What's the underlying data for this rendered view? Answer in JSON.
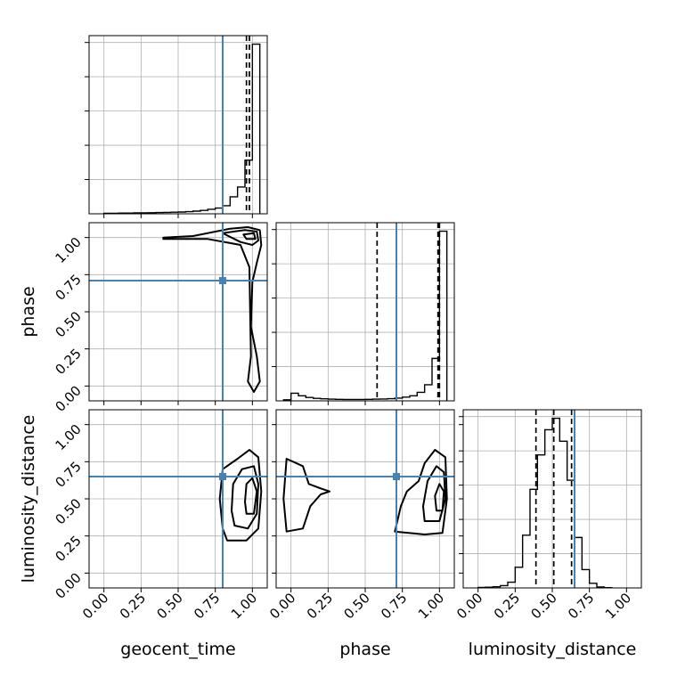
{
  "chart_data": {
    "type": "corner",
    "parameters": [
      "geocent_time",
      "phase",
      "luminosity_distance"
    ],
    "axis_range": [
      -0.1,
      1.1
    ],
    "tick_labels": [
      "0.00",
      "0.25",
      "0.50",
      "0.75",
      "1.00"
    ],
    "tick_values": [
      0,
      0.25,
      0.5,
      0.75,
      1.0
    ],
    "grid": true,
    "colors": {
      "truth": "#4682b4",
      "lines": "#000000",
      "scatter": "#888888"
    },
    "truths": {
      "geocent_time": 0.8,
      "phase": 0.71,
      "luminosity_distance": 0.65
    },
    "quantiles": {
      "geocent_time": [
        0.8,
        0.96,
        0.98
      ],
      "phase": [
        0.58,
        0.99,
        1.0
      ],
      "luminosity_distance": [
        0.39,
        0.51,
        0.63
      ]
    },
    "histograms": {
      "geocent_time": {
        "bin_edges": [
          0.0,
          0.05,
          0.1,
          0.15,
          0.2,
          0.25,
          0.3,
          0.35,
          0.4,
          0.45,
          0.5,
          0.55,
          0.6,
          0.65,
          0.7,
          0.75,
          0.8,
          0.85,
          0.9,
          0.95,
          1.0,
          1.05
        ],
        "counts": [
          0.3,
          0.3,
          0.4,
          0.4,
          0.5,
          0.5,
          0.6,
          0.7,
          0.8,
          0.9,
          1.0,
          1.2,
          1.5,
          1.9,
          2.5,
          3.2,
          4.5,
          9.5,
          15,
          30,
          95
        ]
      },
      "phase": {
        "bin_edges": [
          -0.05,
          0.0,
          0.05,
          0.1,
          0.15,
          0.2,
          0.25,
          0.3,
          0.35,
          0.4,
          0.45,
          0.5,
          0.55,
          0.6,
          0.65,
          0.7,
          0.75,
          0.8,
          0.85,
          0.9,
          0.95,
          1.0,
          1.05
        ],
        "counts": [
          0.6,
          4.5,
          3.0,
          2.0,
          1.5,
          1.2,
          1.0,
          0.9,
          0.8,
          0.8,
          0.8,
          0.9,
          1.0,
          1.1,
          1.3,
          1.6,
          2.2,
          3.0,
          5.0,
          9.5,
          25,
          100
        ]
      },
      "luminosity_distance": {
        "bin_edges": [
          0.0,
          0.05,
          0.1,
          0.15,
          0.2,
          0.25,
          0.3,
          0.35,
          0.4,
          0.45,
          0.5,
          0.55,
          0.6,
          0.65,
          0.7,
          0.75,
          0.8,
          0.85,
          0.9
        ],
        "counts": [
          0.2,
          0.3,
          0.5,
          1.0,
          2.5,
          9,
          23,
          43,
          58,
          69,
          74,
          64,
          47,
          22,
          8,
          2,
          0.4,
          0.1
        ]
      }
    },
    "scatter_density": {
      "phase_vs_geocent_time": "concentrated near geocent_time=1.0, phase=1.0",
      "luminosity_distance_vs_geocent_time": "concentrated near geocent_time=1.0, luminosity_distance=0.5",
      "luminosity_distance_vs_phase": "concentrated near phase=1.0 and phase=0.0, luminosity_distance=0.5"
    }
  }
}
